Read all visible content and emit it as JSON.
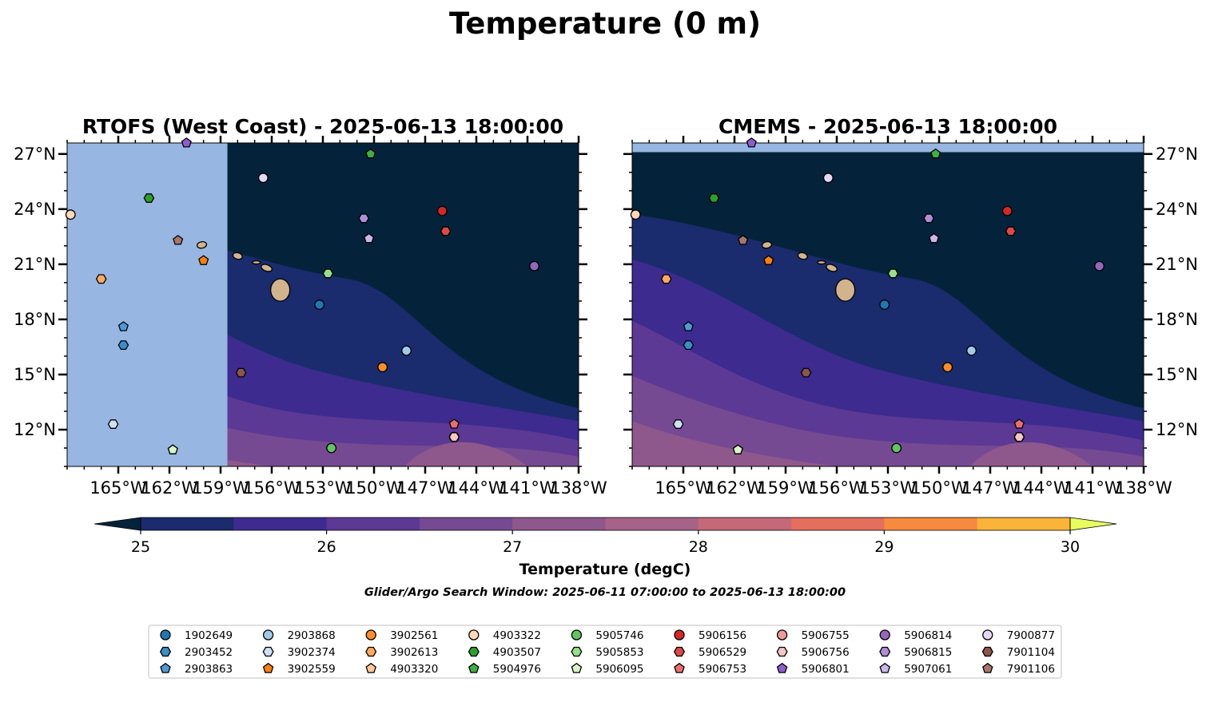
{
  "figure": {
    "suptitle": "Temperature (0 m)",
    "search_window": "Glider/Argo Search Window: 2025-06-11 07:00:00 to 2025-06-13 18:00:00"
  },
  "colors": {
    "land_fill": "#d2b48c",
    "no_data": "#97b6e1",
    "levels": [
      "#04233a",
      "#1a2b6e",
      "#3d2b8f",
      "#5c3994",
      "#764a92",
      "#8e588d",
      "#a76287",
      "#c5697a",
      "#e36f5c",
      "#f68a3f",
      "#fbb43a",
      "#e8fc5e"
    ]
  },
  "chart_data": [
    {
      "type": "map",
      "title": "RTOFS (West Coast) - 2025-06-13 18:00:00",
      "xlim": [
        -168,
        -138
      ],
      "ylim": [
        10,
        27.6
      ],
      "xticks": [
        "165°W",
        "162°W",
        "159°W",
        "156°W",
        "153°W",
        "150°W",
        "147°W",
        "144°W",
        "141°W",
        "138°W"
      ],
      "yticks": [
        "12°N",
        "15°N",
        "18°N",
        "21°N",
        "24°N",
        "27°N"
      ],
      "no_data_west_of": -158.6
    },
    {
      "type": "map",
      "title": "CMEMS - 2025-06-13 18:00:00",
      "xlim": [
        -168,
        -138
      ],
      "ylim": [
        10,
        27.6
      ],
      "xticks": [
        "165°W",
        "162°W",
        "159°W",
        "156°W",
        "153°W",
        "150°W",
        "147°W",
        "144°W",
        "141°W",
        "138°W"
      ],
      "yticks": [
        "12°N",
        "15°N",
        "18°N",
        "21°N",
        "24°N",
        "27°N"
      ],
      "no_data_north_of": 27.1
    },
    {
      "type": "colorbar",
      "label": "Temperature (degC)",
      "vmin": 25,
      "vmax": 30,
      "step": 0.5,
      "ticks": [
        "25",
        "26",
        "27",
        "28",
        "29",
        "30"
      ],
      "extend": "both"
    }
  ],
  "floats": [
    {
      "id": "1902649",
      "color": "#1f77b4",
      "marker": "circle",
      "lon": -153.2,
      "lat": 18.8
    },
    {
      "id": "2903452",
      "color": "#3a8dc7",
      "marker": "hexagon",
      "lon": -164.7,
      "lat": 16.6
    },
    {
      "id": "2903863",
      "color": "#4e9ad3",
      "marker": "pentagon",
      "lon": -164.7,
      "lat": 17.6
    },
    {
      "id": "2903868",
      "color": "#a0cbe8",
      "marker": "circle",
      "lon": -148.1,
      "lat": 16.3
    },
    {
      "id": "3902374",
      "color": "#cfe2f3",
      "marker": "hexagon",
      "lon": -165.3,
      "lat": 12.3
    },
    {
      "id": "3902559",
      "color": "#ff7f0e",
      "marker": "pentagon",
      "lon": -160.0,
      "lat": 21.2
    },
    {
      "id": "3902561",
      "color": "#ff8c2a",
      "marker": "circle",
      "lon": -149.5,
      "lat": 15.4
    },
    {
      "id": "3902613",
      "color": "#ffa95e",
      "marker": "hexagon",
      "lon": -166.0,
      "lat": 20.2
    },
    {
      "id": "4903320",
      "color": "#ffc999",
      "marker": "pentagon",
      "lon": -161.8,
      "lat": 10.9
    },
    {
      "id": "4903322",
      "color": "#ffd8b8",
      "marker": "circle",
      "lon": -167.8,
      "lat": 23.7
    },
    {
      "id": "4903507",
      "color": "#2ca02c",
      "marker": "hexagon",
      "lon": -163.2,
      "lat": 24.6
    },
    {
      "id": "5904976",
      "color": "#3cb043",
      "marker": "pentagon",
      "lon": -150.2,
      "lat": 27.0
    },
    {
      "id": "5905746",
      "color": "#62c462",
      "marker": "circle",
      "lon": -152.5,
      "lat": 11.0
    },
    {
      "id": "5905853",
      "color": "#98df8a",
      "marker": "hexagon",
      "lon": -152.7,
      "lat": 20.5
    },
    {
      "id": "5906095",
      "color": "#d6f5c6",
      "marker": "pentagon",
      "lon": -161.8,
      "lat": 10.9
    },
    {
      "id": "5906156",
      "color": "#d62728",
      "marker": "circle",
      "lon": -146.0,
      "lat": 23.9
    },
    {
      "id": "5906529",
      "color": "#e04848",
      "marker": "hexagon",
      "lon": -145.8,
      "lat": 22.8
    },
    {
      "id": "5906753",
      "color": "#eb6e6e",
      "marker": "pentagon",
      "lon": -145.3,
      "lat": 12.3
    },
    {
      "id": "5906755",
      "color": "#f09a9a",
      "marker": "circle",
      "lon": -145.3,
      "lat": 11.6
    },
    {
      "id": "5906756",
      "color": "#f8c5c5",
      "marker": "hexagon",
      "lon": -145.3,
      "lat": 11.6
    },
    {
      "id": "5906801",
      "color": "#8e5ecf",
      "marker": "pentagon",
      "lon": -161.0,
      "lat": 27.6
    },
    {
      "id": "5906814",
      "color": "#9467bd",
      "marker": "circle",
      "lon": -140.6,
      "lat": 20.9
    },
    {
      "id": "5906815",
      "color": "#b08ed6",
      "marker": "hexagon",
      "lon": -150.6,
      "lat": 23.5
    },
    {
      "id": "5907061",
      "color": "#cdb7ea",
      "marker": "pentagon",
      "lon": -150.3,
      "lat": 22.4
    },
    {
      "id": "7900877",
      "color": "#e5d8f5",
      "marker": "circle",
      "lon": -156.5,
      "lat": 25.7
    },
    {
      "id": "7901104",
      "color": "#8c564b",
      "marker": "hexagon",
      "lon": -157.8,
      "lat": 15.1
    },
    {
      "id": "7901106",
      "color": "#a9766a",
      "marker": "pentagon",
      "lon": -161.5,
      "lat": 22.3
    }
  ]
}
